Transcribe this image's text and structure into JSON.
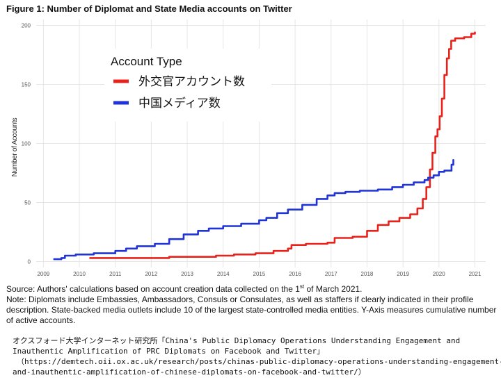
{
  "figure_title": "Figure 1: Number of Diplomat and State Media accounts on Twitter",
  "notes": {
    "source_before": "Source: Authors' calculations based on account creation data collected on the 1",
    "source_sup": "st",
    "source_after": " of March 2021.",
    "note": "Note: Diplomats include Embassies, Ambassadors, Consuls or Consulates, as well as staffers if clearly indicated in their profile description. State-backed media outlets include 10 of the largest state-controlled media entities. Y-Axis measures cumulative number of active accounts."
  },
  "citation": {
    "line1": "オクスフォード大学インターネット研究所「China's Public Diplomacy Operations Understanding Engagement and",
    "line2": "Inauthentic Amplification of PRC Diplomats on Facebook and Twitter」",
    "line3": "（https://demtech.oii.ox.ac.uk/research/posts/chinas-public-diplomacy-operations-understanding-engagement-",
    "line4": "and-inauthentic-amplification-of-chinese-diplomats-on-facebook-and-twitter/）"
  },
  "colors": {
    "diplomats": "#e8221b",
    "state_media": "#1f33d6",
    "grid": "#e6e6e6",
    "axis_text": "#555555"
  },
  "chart_data": {
    "type": "line",
    "title": "Figure 1: Number of Diplomat and State Media accounts on Twitter",
    "xlabel": "",
    "ylabel": "Number of Accounts",
    "xlim": [
      2008.8,
      2021.3
    ],
    "ylim": [
      -5,
      205
    ],
    "x_ticks": [
      2009,
      2010,
      2011,
      2012,
      2013,
      2014,
      2015,
      2016,
      2017,
      2018,
      2019,
      2020,
      2021
    ],
    "y_ticks": [
      0,
      50,
      100,
      150,
      200
    ],
    "grid": true,
    "legend": {
      "title": "Account Type",
      "position": "top-left"
    },
    "series": [
      {
        "name": "外交官アカウント数",
        "color": "#e8221b",
        "points": [
          [
            2010.3,
            3
          ],
          [
            2011.0,
            3
          ],
          [
            2011.8,
            3
          ],
          [
            2012.5,
            4
          ],
          [
            2013.2,
            4
          ],
          [
            2013.8,
            5
          ],
          [
            2014.3,
            6
          ],
          [
            2014.9,
            7
          ],
          [
            2015.4,
            9
          ],
          [
            2015.8,
            11
          ],
          [
            2015.9,
            14
          ],
          [
            2016.3,
            15
          ],
          [
            2016.9,
            16
          ],
          [
            2017.1,
            20
          ],
          [
            2017.6,
            21
          ],
          [
            2018.0,
            26
          ],
          [
            2018.3,
            31
          ],
          [
            2018.6,
            34
          ],
          [
            2018.9,
            37
          ],
          [
            2019.2,
            40
          ],
          [
            2019.4,
            45
          ],
          [
            2019.55,
            53
          ],
          [
            2019.65,
            63
          ],
          [
            2019.75,
            78
          ],
          [
            2019.82,
            92
          ],
          [
            2019.9,
            106
          ],
          [
            2019.96,
            112
          ],
          [
            2020.02,
            123
          ],
          [
            2020.08,
            138
          ],
          [
            2020.15,
            158
          ],
          [
            2020.22,
            172
          ],
          [
            2020.28,
            180
          ],
          [
            2020.34,
            187
          ],
          [
            2020.45,
            189
          ],
          [
            2020.7,
            190
          ],
          [
            2020.9,
            193
          ],
          [
            2021.0,
            194
          ]
        ]
      },
      {
        "name": "中国メディア数",
        "color": "#1f33d6",
        "points": [
          [
            2009.3,
            2
          ],
          [
            2009.5,
            3
          ],
          [
            2009.6,
            5
          ],
          [
            2009.9,
            6
          ],
          [
            2010.4,
            7
          ],
          [
            2011.0,
            9
          ],
          [
            2011.3,
            11
          ],
          [
            2011.6,
            13
          ],
          [
            2012.1,
            15
          ],
          [
            2012.5,
            19
          ],
          [
            2012.9,
            23
          ],
          [
            2013.3,
            26
          ],
          [
            2013.6,
            28
          ],
          [
            2014.0,
            30
          ],
          [
            2014.5,
            32
          ],
          [
            2015.0,
            35
          ],
          [
            2015.2,
            37
          ],
          [
            2015.5,
            41
          ],
          [
            2015.8,
            44
          ],
          [
            2016.2,
            48
          ],
          [
            2016.6,
            53
          ],
          [
            2016.9,
            56
          ],
          [
            2017.1,
            58
          ],
          [
            2017.4,
            59
          ],
          [
            2017.8,
            60
          ],
          [
            2018.3,
            61
          ],
          [
            2018.7,
            63
          ],
          [
            2019.0,
            65
          ],
          [
            2019.3,
            67
          ],
          [
            2019.6,
            69
          ],
          [
            2019.7,
            71
          ],
          [
            2019.85,
            73
          ],
          [
            2020.0,
            76
          ],
          [
            2020.15,
            77
          ],
          [
            2020.3,
            77
          ],
          [
            2020.35,
            82
          ],
          [
            2020.4,
            86
          ]
        ]
      }
    ]
  }
}
